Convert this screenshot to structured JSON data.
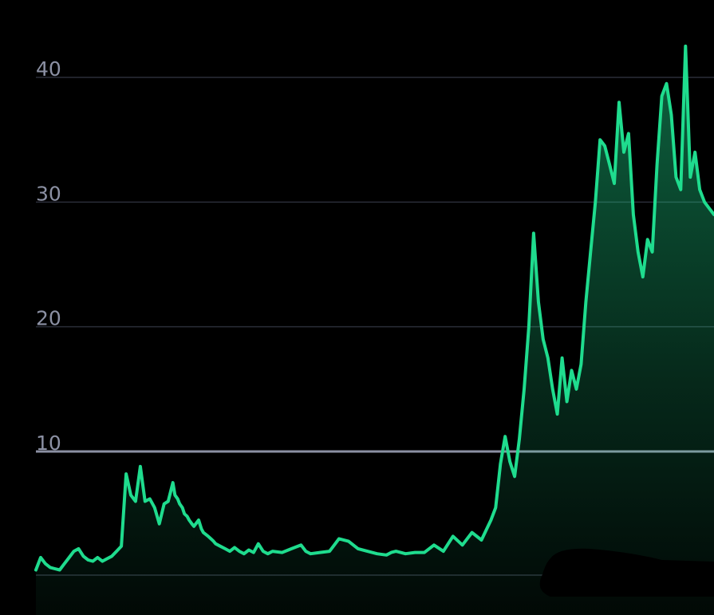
{
  "chart_data": {
    "type": "area",
    "title": "",
    "xlabel": "",
    "ylabel": "",
    "ylim": [
      -3,
      45
    ],
    "xlim": [
      0,
      1
    ],
    "yticks": [
      40,
      30,
      20,
      10
    ],
    "ytick_labels": [
      "40",
      "30",
      "20",
      "10"
    ],
    "grid": true,
    "reference_line": {
      "value": 10,
      "color": "#8b90a3"
    },
    "colors": {
      "line": "#1fdc8e",
      "grid": "#2a2d38",
      "tick_label": "#8b90a3",
      "background": "#000000"
    },
    "series": [
      {
        "x": [
          0.0,
          0.007,
          0.014,
          0.021,
          0.028,
          0.035,
          0.042,
          0.049,
          0.056,
          0.063,
          0.07,
          0.077,
          0.084,
          0.091,
          0.098,
          0.105,
          0.112,
          0.119,
          0.126,
          0.133,
          0.14,
          0.147,
          0.154,
          0.161,
          0.168,
          0.175,
          0.182,
          0.189,
          0.195,
          0.202,
          0.205,
          0.209,
          0.212,
          0.216,
          0.219,
          0.223,
          0.226,
          0.23,
          0.233,
          0.24,
          0.244,
          0.247,
          0.254,
          0.258,
          0.262,
          0.265,
          0.272,
          0.279,
          0.286,
          0.293,
          0.3,
          0.307,
          0.314,
          0.321,
          0.328,
          0.335,
          0.342,
          0.349,
          0.363,
          0.377,
          0.391,
          0.398,
          0.405,
          0.419,
          0.433,
          0.44,
          0.447,
          0.461,
          0.475,
          0.489,
          0.503,
          0.517,
          0.524,
          0.531,
          0.545,
          0.559,
          0.573,
          0.587,
          0.601,
          0.615,
          0.629,
          0.643,
          0.657,
          0.671,
          0.678,
          0.685,
          0.692,
          0.699,
          0.706,
          0.713,
          0.72,
          0.727,
          0.734,
          0.741,
          0.748,
          0.755,
          0.762,
          0.769,
          0.776,
          0.783,
          0.79,
          0.797,
          0.804,
          0.811,
          0.818,
          0.825,
          0.832,
          0.839,
          0.846,
          0.853,
          0.86,
          0.867,
          0.874,
          0.881,
          0.888,
          0.895,
          0.902,
          0.909,
          0.916,
          0.923,
          0.93,
          0.937,
          0.944,
          0.951,
          0.958,
          0.965,
          0.972,
          0.979,
          0.986,
          0.993,
          1.0
        ],
        "values": [
          0.5,
          1.5,
          1.0,
          0.7,
          0.6,
          0.5,
          1.0,
          1.5,
          2.0,
          2.2,
          1.6,
          1.3,
          1.2,
          1.5,
          1.2,
          1.4,
          1.6,
          2.0,
          2.4,
          8.2,
          6.5,
          6.0,
          8.8,
          6.0,
          6.2,
          5.5,
          4.2,
          5.8,
          6.0,
          7.5,
          6.5,
          6.2,
          5.8,
          5.5,
          5.0,
          4.8,
          4.5,
          4.2,
          4.0,
          4.5,
          3.8,
          3.5,
          3.2,
          3.0,
          2.8,
          2.6,
          2.4,
          2.2,
          2.0,
          2.3,
          2.0,
          1.8,
          2.1,
          1.9,
          2.6,
          2.0,
          1.8,
          2.0,
          1.9,
          2.2,
          2.5,
          2.0,
          1.8,
          1.9,
          2.0,
          2.5,
          3.0,
          2.8,
          2.2,
          2.0,
          1.8,
          1.7,
          1.9,
          2.0,
          1.8,
          1.9,
          1.9,
          2.5,
          2.0,
          3.2,
          2.5,
          3.5,
          2.9,
          4.5,
          5.5,
          9.0,
          11.2,
          9.2,
          8.0,
          11.0,
          15.0,
          20.0,
          27.5,
          22.0,
          19.0,
          17.5,
          15.0,
          13.0,
          17.5,
          14.0,
          16.5,
          15.0,
          17.0,
          22.0,
          26.0,
          30.0,
          35.0,
          34.5,
          33.0,
          31.5,
          38.0,
          34.0,
          35.5,
          29.0,
          26.0,
          24.0,
          27.0,
          26.0,
          33.0,
          38.5,
          39.5,
          37.0,
          32.0,
          31.0,
          42.5,
          32.0,
          34.0,
          31.0,
          30.0,
          29.5,
          29.0
        ]
      }
    ]
  }
}
